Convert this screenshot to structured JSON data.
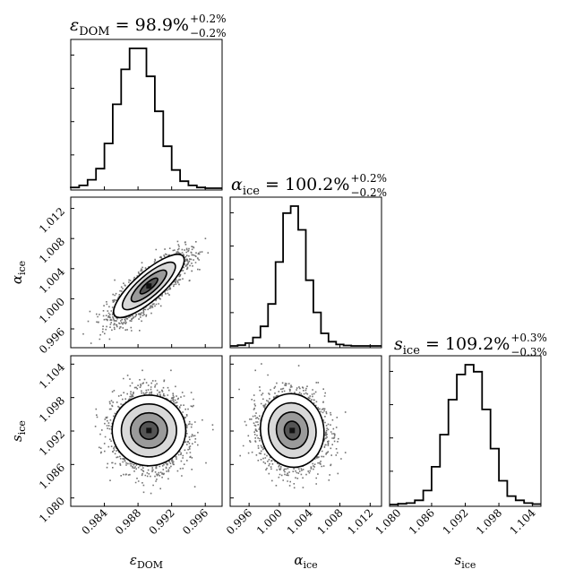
{
  "chart_data": {
    "type": "corner",
    "parameters": [
      {
        "key": "eps",
        "symbol": "ε",
        "subscript": "DOM",
        "label": "ε_DOM",
        "range": [
          0.98,
          0.998
        ],
        "ticks": [
          "0.984",
          "0.988",
          "0.992",
          "0.996"
        ],
        "tick_values": [
          0.984,
          0.988,
          0.992,
          0.996
        ]
      },
      {
        "key": "alpha",
        "symbol": "α",
        "subscript": "ice",
        "label": "α_ice",
        "range": [
          0.9935,
          1.0135
        ],
        "ticks": [
          "0.996",
          "1.000",
          "1.004",
          "1.008",
          "1.012"
        ],
        "tick_values": [
          0.996,
          1.0,
          1.004,
          1.008,
          1.012
        ]
      },
      {
        "key": "s",
        "symbol": "s",
        "subscript": "ice",
        "label": "s_ice",
        "range": [
          1.0785,
          1.1055
        ],
        "ticks": [
          "1.080",
          "1.086",
          "1.092",
          "1.098",
          "1.104"
        ],
        "tick_values": [
          1.08,
          1.086,
          1.092,
          1.098,
          1.104
        ]
      }
    ],
    "titles": [
      {
        "symbol": "ε",
        "subscript": "DOM",
        "value": "= 98.9%",
        "plus": "+0.2%",
        "minus": "−0.2%"
      },
      {
        "symbol": "α",
        "subscript": "ice",
        "value": "= 100.2%",
        "plus": "+0.2%",
        "minus": "−0.2%"
      },
      {
        "symbol": "s",
        "subscript": "ice",
        "value": "= 109.2%",
        "plus": "+0.3%",
        "minus": "−0.3%"
      }
    ],
    "histograms": [
      {
        "param": "eps",
        "bin_start": 0.979,
        "bin_width": 0.001,
        "counts": [
          0,
          0.005,
          0.02,
          0.06,
          0.14,
          0.32,
          0.6,
          0.85,
          1.0,
          1.0,
          0.8,
          0.55,
          0.3,
          0.13,
          0.05,
          0.02,
          0.005,
          0,
          0
        ]
      },
      {
        "param": "alpha",
        "bin_start": 0.9935,
        "bin_width": 0.001,
        "counts": [
          0,
          0.005,
          0.02,
          0.06,
          0.14,
          0.3,
          0.6,
          0.95,
          1.0,
          0.83,
          0.47,
          0.24,
          0.09,
          0.03,
          0.01,
          0.003,
          0,
          0,
          0,
          0
        ]
      },
      {
        "param": "s",
        "bin_start": 1.0785,
        "bin_width": 0.0015,
        "counts": [
          0,
          0.005,
          0.01,
          0.03,
          0.1,
          0.27,
          0.5,
          0.75,
          0.93,
          1.0,
          0.95,
          0.68,
          0.4,
          0.17,
          0.06,
          0.03,
          0.01,
          0.003
        ]
      }
    ],
    "scatter_2d": [
      {
        "x": "eps",
        "y": "alpha",
        "center": [
          0.9893,
          1.0017
        ],
        "sigma": [
          0.0021,
          0.0021
        ],
        "correlation": 0.82
      },
      {
        "x": "eps",
        "y": "s",
        "center": [
          0.9893,
          1.0921
        ],
        "sigma": [
          0.0021,
          0.0033
        ],
        "correlation": 0.0
      },
      {
        "x": "alpha",
        "y": "s",
        "center": [
          1.0017,
          1.0921
        ],
        "sigma": [
          0.0021,
          0.0033
        ],
        "correlation": -0.05
      }
    ],
    "contour_levels_sigma": [
      0.5,
      1.0,
      1.5,
      2.0
    ],
    "colors": {
      "points": "#000000",
      "contour": "#000000",
      "inner_fill": "#ffffff"
    }
  }
}
